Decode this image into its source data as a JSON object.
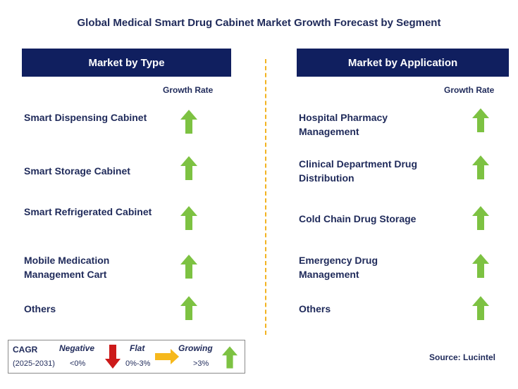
{
  "title": "Global Medical Smart Drug Cabinet Market Growth Forecast by Segment",
  "left_panel": {
    "header": "Market by Type",
    "growth_rate_label": "Growth Rate",
    "items": [
      {
        "label": "Smart Dispensing Cabinet",
        "trend": "growing"
      },
      {
        "label": "Smart Storage Cabinet",
        "trend": "growing"
      },
      {
        "label": "Smart Refrigerated Cabinet",
        "trend": "growing"
      },
      {
        "label": "Mobile Medication Management Cart",
        "trend": "growing"
      },
      {
        "label": "Others",
        "trend": "growing"
      }
    ]
  },
  "right_panel": {
    "header": "Market by Application",
    "growth_rate_label": "Growth Rate",
    "items": [
      {
        "label": "Hospital Pharmacy Management",
        "trend": "growing"
      },
      {
        "label": "Clinical Department Drug Distribution",
        "trend": "growing"
      },
      {
        "label": "Cold Chain Drug Storage",
        "trend": "growing"
      },
      {
        "label": "Emergency Drug Management",
        "trend": "growing"
      },
      {
        "label": "Others",
        "trend": "growing"
      }
    ]
  },
  "legend": {
    "cagr": "CAGR",
    "period": "(2025-2031)",
    "negative": "Negative",
    "negative_range": "<0%",
    "flat": "Flat",
    "flat_range": "0%-3%",
    "growing": "Growing",
    "growing_range": ">3%"
  },
  "source": "Source: Lucintel",
  "colors": {
    "navy": "#101f5f",
    "green": "#7dc242",
    "red": "#cc1a1a",
    "yellow": "#f6b81c",
    "divider": "#f2b321"
  }
}
